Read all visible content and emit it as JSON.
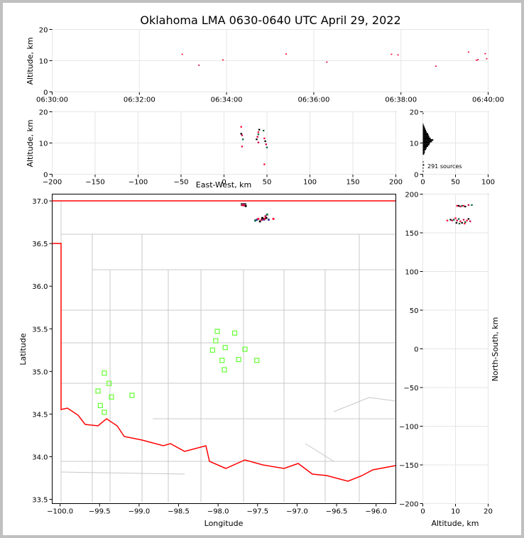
{
  "chart_data": {
    "title": "Oklahoma LMA 0630-0640 UTC April 29, 2022",
    "colors": {
      "frame": "#c0c0c0",
      "border_state": "#ff0000",
      "county": "#c8c8c8",
      "station": "#66ff33",
      "grid": "#e6e6e6"
    },
    "panels": [
      {
        "id": "time_height",
        "type": "scatter",
        "xlabel": "",
        "ylabel": "Altitude, km",
        "xlim": [
          "06:30:00",
          "06:40:00"
        ],
        "ylim": [
          0,
          20
        ],
        "xticks": [
          "06:30:00",
          "06:32:00",
          "06:34:00",
          "06:36:00",
          "06:38:00",
          "06:40:00"
        ],
        "yticks": [
          "0",
          "10",
          "20"
        ],
        "points": [
          {
            "t": 179,
            "alt": 12.0
          },
          {
            "t": 202,
            "alt": 8.5
          },
          {
            "t": 235,
            "alt": 10.2
          },
          {
            "t": 322,
            "alt": 12.1
          },
          {
            "t": 378,
            "alt": 9.5
          },
          {
            "t": 467,
            "alt": 12.0
          },
          {
            "t": 476,
            "alt": 11.8
          },
          {
            "t": 528,
            "alt": 8.2
          },
          {
            "t": 573,
            "alt": 12.7
          },
          {
            "t": 584,
            "alt": 10.1
          },
          {
            "t": 586,
            "alt": 10.3
          },
          {
            "t": 596,
            "alt": 12.2
          },
          {
            "t": 598,
            "alt": 10.6
          }
        ]
      },
      {
        "id": "ew_alt",
        "type": "scatter",
        "xlabel": "East-West, km",
        "ylabel": "Altitude, km",
        "xlim": [
          -200,
          200
        ],
        "ylim": [
          0,
          20
        ],
        "xticks": [
          "−200",
          "−150",
          "−100",
          "−50",
          "0",
          "50",
          "100",
          "150",
          "200"
        ],
        "yticks": [
          "0",
          "10",
          "20"
        ],
        "points": [
          {
            "x": 20,
            "alt": 15.2
          },
          {
            "x": 20,
            "alt": 13.0
          },
          {
            "x": 21,
            "alt": 12.5
          },
          {
            "x": 22,
            "alt": 11.2
          },
          {
            "x": 21,
            "alt": 8.9
          },
          {
            "x": 38,
            "alt": 11.2
          },
          {
            "x": 39,
            "alt": 12.0
          },
          {
            "x": 40,
            "alt": 12.8
          },
          {
            "x": 40,
            "alt": 13.5
          },
          {
            "x": 41,
            "alt": 14.3
          },
          {
            "x": 40,
            "alt": 10.2
          },
          {
            "x": 46,
            "alt": 14.0
          },
          {
            "x": 47,
            "alt": 11.5
          },
          {
            "x": 48,
            "alt": 10.6
          },
          {
            "x": 49,
            "alt": 9.6
          },
          {
            "x": 50,
            "alt": 8.6
          },
          {
            "x": 47,
            "alt": 3.2
          }
        ]
      },
      {
        "id": "histogram",
        "type": "histogram",
        "xlabel": "",
        "ylabel": "",
        "xlim": [
          0,
          100
        ],
        "ylim": [
          0,
          20
        ],
        "xticks": [
          "0",
          "50",
          "100"
        ],
        "yticks": [
          "0",
          "10",
          "20"
        ],
        "annotation": "291 sources",
        "bins": [
          {
            "alt": 1.0,
            "count": 1
          },
          {
            "alt": 2.0,
            "count": 1
          },
          {
            "alt": 3.0,
            "count": 2
          },
          {
            "alt": 4.0,
            "count": 1
          },
          {
            "alt": 6.5,
            "count": 2
          },
          {
            "alt": 7.0,
            "count": 3
          },
          {
            "alt": 7.5,
            "count": 3
          },
          {
            "alt": 8.0,
            "count": 5
          },
          {
            "alt": 8.5,
            "count": 6
          },
          {
            "alt": 9.0,
            "count": 8
          },
          {
            "alt": 9.5,
            "count": 10
          },
          {
            "alt": 10.0,
            "count": 11
          },
          {
            "alt": 10.5,
            "count": 14
          },
          {
            "alt": 11.0,
            "count": 16
          },
          {
            "alt": 11.5,
            "count": 12
          },
          {
            "alt": 12.0,
            "count": 10
          },
          {
            "alt": 12.5,
            "count": 9
          },
          {
            "alt": 13.0,
            "count": 8
          },
          {
            "alt": 13.5,
            "count": 6
          },
          {
            "alt": 14.0,
            "count": 5
          },
          {
            "alt": 14.5,
            "count": 4
          },
          {
            "alt": 15.0,
            "count": 3
          },
          {
            "alt": 15.5,
            "count": 2
          },
          {
            "alt": 16.0,
            "count": 1
          },
          {
            "alt": 19.5,
            "count": 1
          }
        ]
      },
      {
        "id": "map",
        "type": "scatter",
        "xlabel": "Longitude",
        "ylabel": "Latitude",
        "xlim": [
          -100.1,
          -95.75
        ],
        "ylim": [
          33.45,
          37.08
        ],
        "xticks": [
          "−100.0",
          "−99.5",
          "−99.0",
          "−98.5",
          "−98.0",
          "−97.5",
          "−97.0",
          "−96.5",
          "−96.0"
        ],
        "yticks": [
          "33.5",
          "34.0",
          "34.5",
          "35.0",
          "35.5",
          "36.0",
          "36.5",
          "37.0"
        ],
        "stations": [
          {
            "lon": -98.01,
            "lat": 35.47
          },
          {
            "lon": -97.79,
            "lat": 35.45
          },
          {
            "lon": -98.03,
            "lat": 35.36
          },
          {
            "lon": -97.91,
            "lat": 35.28
          },
          {
            "lon": -98.07,
            "lat": 35.25
          },
          {
            "lon": -97.66,
            "lat": 35.26
          },
          {
            "lon": -97.95,
            "lat": 35.13
          },
          {
            "lon": -97.74,
            "lat": 35.14
          },
          {
            "lon": -97.51,
            "lat": 35.13
          },
          {
            "lon": -97.92,
            "lat": 35.02
          },
          {
            "lon": -99.44,
            "lat": 34.98
          },
          {
            "lon": -99.38,
            "lat": 34.86
          },
          {
            "lon": -99.52,
            "lat": 34.77
          },
          {
            "lon": -99.09,
            "lat": 34.72
          },
          {
            "lon": -99.35,
            "lat": 34.7
          },
          {
            "lon": -99.49,
            "lat": 34.6
          },
          {
            "lon": -99.44,
            "lat": 34.52
          }
        ],
        "sources": [
          {
            "lon": -97.69,
            "lat": 36.95
          },
          {
            "lon": -97.65,
            "lat": 36.94
          },
          {
            "lon": -97.67,
            "lat": 36.95
          },
          {
            "lon": -97.53,
            "lat": 36.77
          },
          {
            "lon": -97.51,
            "lat": 36.78
          },
          {
            "lon": -97.49,
            "lat": 36.79
          },
          {
            "lon": -97.47,
            "lat": 36.76
          },
          {
            "lon": -97.45,
            "lat": 36.78
          },
          {
            "lon": -97.43,
            "lat": 36.79
          },
          {
            "lon": -97.42,
            "lat": 36.78
          },
          {
            "lon": -97.41,
            "lat": 36.79
          },
          {
            "lon": -97.39,
            "lat": 36.8
          },
          {
            "lon": -97.4,
            "lat": 36.82
          },
          {
            "lon": -97.38,
            "lat": 36.84
          },
          {
            "lon": -97.36,
            "lat": 36.78
          },
          {
            "lon": -97.3,
            "lat": 36.79
          },
          {
            "lon": -97.44,
            "lat": 36.8
          }
        ]
      },
      {
        "id": "alt_ns",
        "type": "scatter",
        "xlabel": "Altitude, km",
        "ylabel": "North-South, km",
        "xlim": [
          0,
          20
        ],
        "ylim": [
          -200,
          200
        ],
        "xticks": [
          "0",
          "10",
          "20"
        ],
        "yticks": [
          "−200",
          "−150",
          "−100",
          "−50",
          "0",
          "50",
          "100",
          "150",
          "200"
        ],
        "points": [
          {
            "alt": 10.5,
            "ns": 185
          },
          {
            "alt": 11.0,
            "ns": 185
          },
          {
            "alt": 11.5,
            "ns": 184
          },
          {
            "alt": 12.0,
            "ns": 185
          },
          {
            "alt": 12.5,
            "ns": 185
          },
          {
            "alt": 13.0,
            "ns": 184
          },
          {
            "alt": 14.0,
            "ns": 186
          },
          {
            "alt": 15.0,
            "ns": 186
          },
          {
            "alt": 7.5,
            "ns": 166
          },
          {
            "alt": 8.5,
            "ns": 167
          },
          {
            "alt": 9.0,
            "ns": 166
          },
          {
            "alt": 9.5,
            "ns": 167
          },
          {
            "alt": 10.0,
            "ns": 169
          },
          {
            "alt": 10.3,
            "ns": 163
          },
          {
            "alt": 10.5,
            "ns": 166
          },
          {
            "alt": 11.0,
            "ns": 168
          },
          {
            "alt": 11.5,
            "ns": 165
          },
          {
            "alt": 12.0,
            "ns": 163
          },
          {
            "alt": 12.5,
            "ns": 167
          },
          {
            "alt": 13.0,
            "ns": 164
          },
          {
            "alt": 13.5,
            "ns": 166
          },
          {
            "alt": 14.0,
            "ns": 168
          },
          {
            "alt": 14.5,
            "ns": 165
          },
          {
            "alt": 11.2,
            "ns": 162
          },
          {
            "alt": 12.8,
            "ns": 162
          }
        ]
      }
    ]
  }
}
